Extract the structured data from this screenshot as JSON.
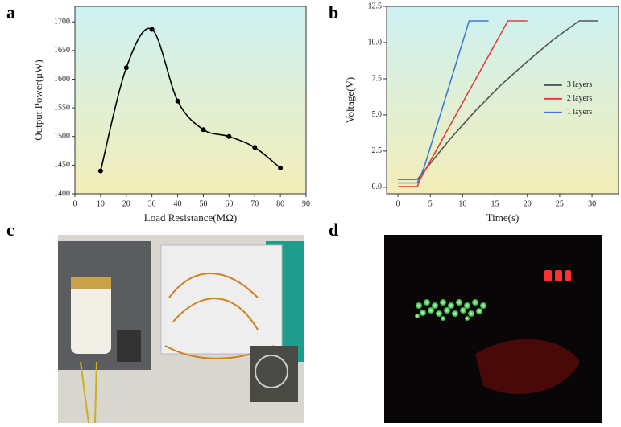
{
  "panels": [
    "a",
    "b",
    "c",
    "d"
  ],
  "chart_data": [
    {
      "type": "line",
      "smooth": true,
      "markers": true,
      "x_label": "Load Resistance(MΩ)",
      "y_label": "Output Power(μW)",
      "xlim": [
        0,
        90
      ],
      "xticks": [
        0,
        10,
        20,
        30,
        40,
        50,
        60,
        70,
        80,
        90
      ],
      "ylim": [
        1400,
        1727
      ],
      "yticks": [
        1400,
        1450,
        1500,
        1550,
        1600,
        1650,
        1700
      ],
      "series": [
        {
          "color": "#000000",
          "x": [
            10,
            20,
            30,
            40,
            50,
            60,
            70,
            80
          ],
          "values": [
            1440,
            1620,
            1687,
            1562,
            1512,
            1500,
            1481,
            1445
          ]
        }
      ]
    },
    {
      "type": "line",
      "smooth": false,
      "markers": false,
      "legend": "right",
      "x_label": "Time(s)",
      "y_label": "Voltage(V)",
      "xlim": [
        -1.75,
        34.1
      ],
      "xticks": [
        0,
        5,
        10,
        15,
        20,
        25,
        30
      ],
      "ylim": [
        -0.45,
        12.5
      ],
      "yticks": [
        {
          "value": 0,
          "label": "0.0"
        },
        2.5,
        {
          "value": 5,
          "label": "5.0"
        },
        7.5,
        {
          "value": 10,
          "label": "10.0"
        },
        12.5
      ],
      "series": [
        {
          "name": "3 layers",
          "color": "#555555",
          "x": [
            0,
            3,
            4,
            8,
            12,
            16,
            20,
            24,
            28,
            31
          ],
          "values": [
            0.55,
            0.55,
            1.1,
            3.3,
            5.3,
            7.1,
            8.7,
            10.2,
            11.5,
            11.5
          ]
        },
        {
          "name": "2 layers",
          "color": "#e04040",
          "x": [
            0,
            3,
            3.5,
            17,
            20
          ],
          "values": [
            0.05,
            0.05,
            0.6,
            11.5,
            11.5
          ]
        },
        {
          "name": "1 layers",
          "color": "#3a7bd5",
          "x": [
            0,
            3,
            4,
            11,
            14
          ],
          "values": [
            0.3,
            0.3,
            1.3,
            11.5,
            11.5
          ]
        }
      ]
    }
  ]
}
